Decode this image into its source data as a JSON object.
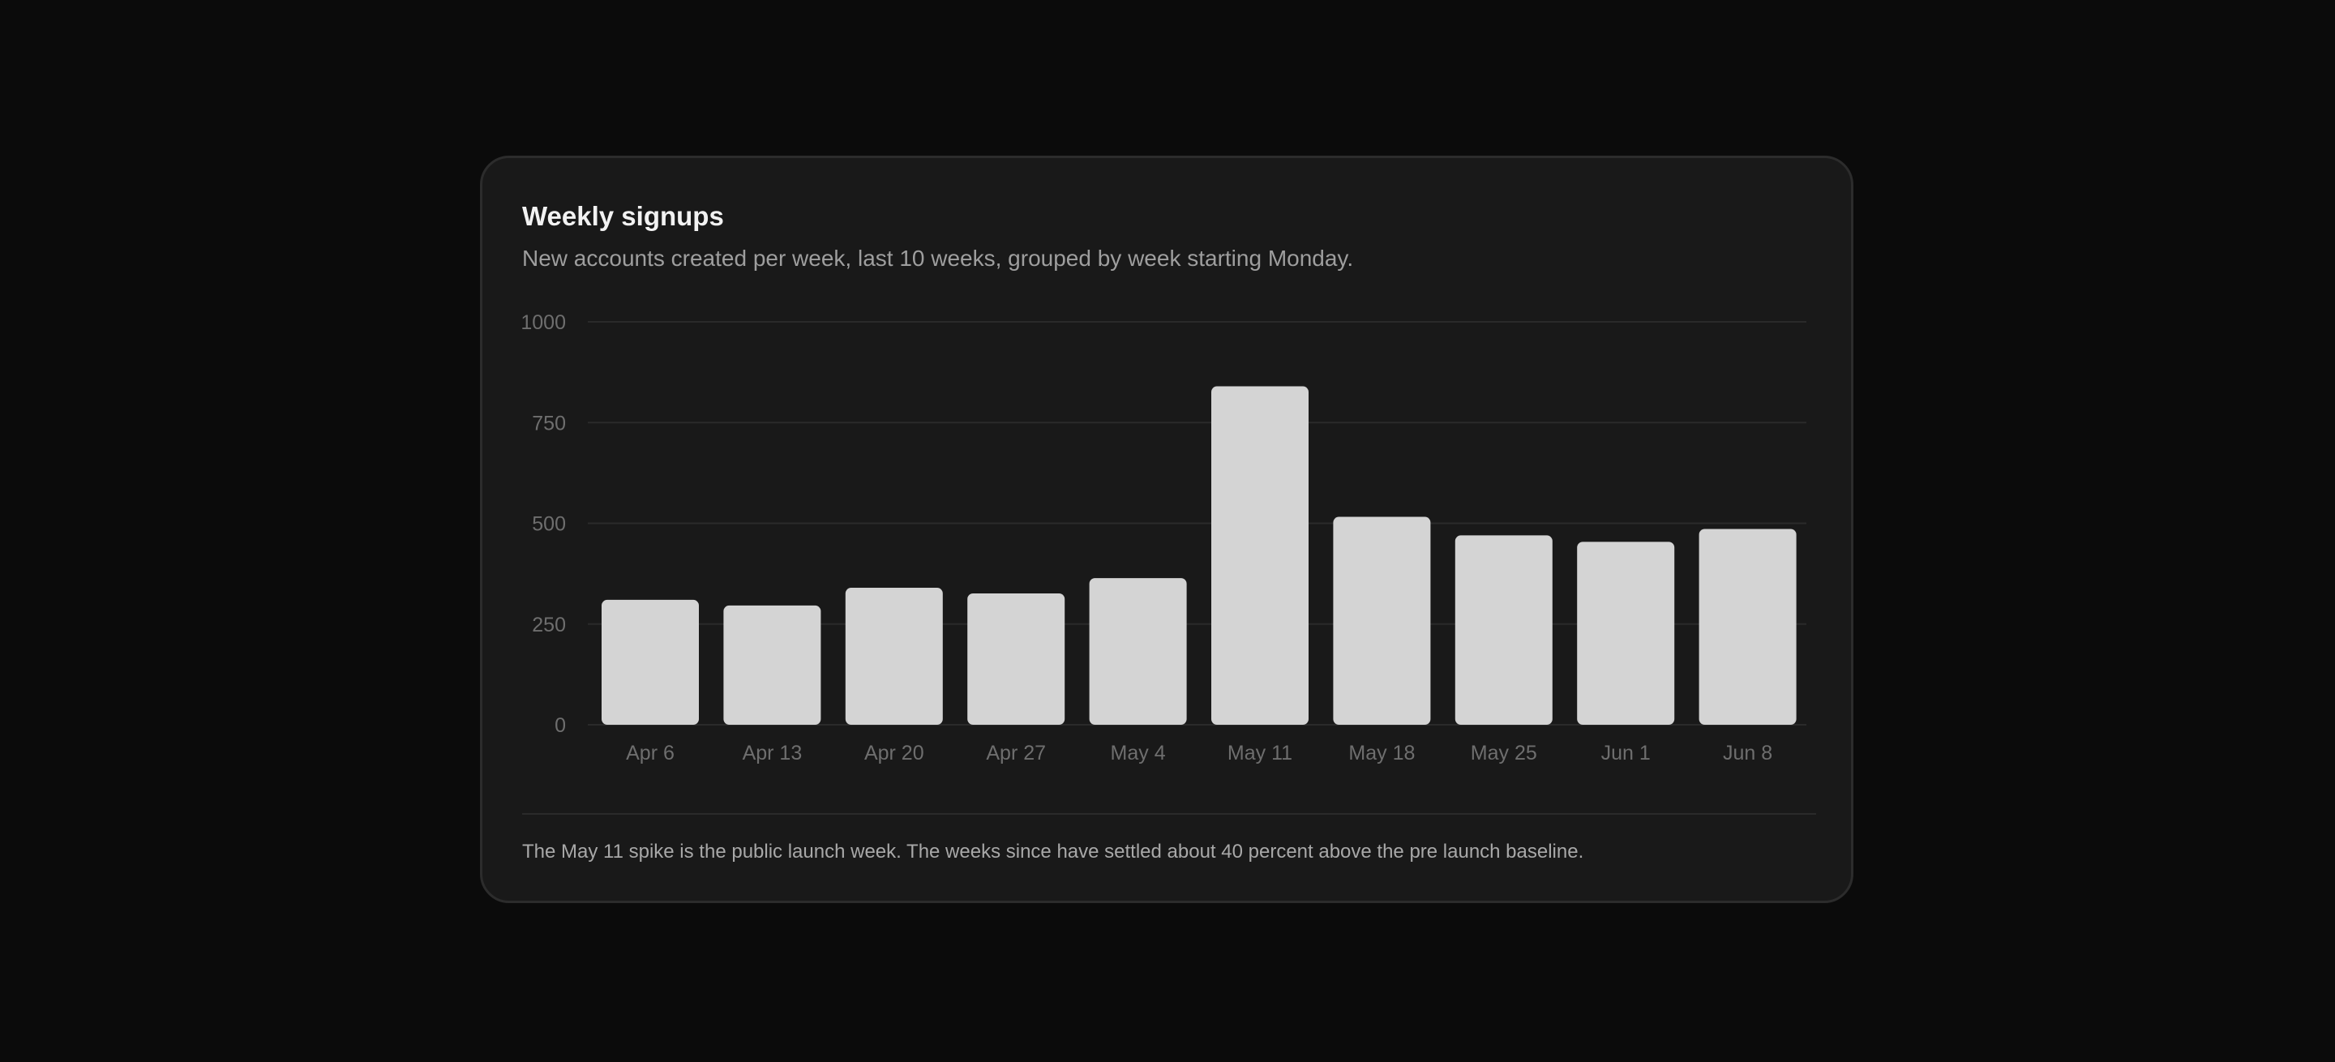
{
  "card": {
    "title": "Weekly signups",
    "subtitle": "New accounts created per week, last 10 weeks, grouped by week starting Monday.",
    "footnote": "The May 11 spike is the public launch week. The weeks since have settled about 40 percent above the pre launch baseline."
  },
  "chart_data": {
    "type": "bar",
    "title": "Weekly signups",
    "subtitle": "New accounts created per week, last 10 weeks, grouped by week starting Monday.",
    "xlabel": "",
    "ylabel": "",
    "categories": [
      "Apr 6",
      "Apr 13",
      "Apr 20",
      "Apr 27",
      "May 4",
      "May 11",
      "May 18",
      "May 25",
      "Jun 1",
      "Jun 8"
    ],
    "values": [
      310,
      296,
      340,
      326,
      364,
      840,
      516,
      470,
      454,
      486
    ],
    "ylim": [
      0,
      1000
    ],
    "yticks": [
      0,
      250,
      500,
      750,
      1000
    ],
    "grid": true,
    "legend": "none",
    "colors": {
      "bar": "#d4d4d4",
      "grid": "#2a2a2a",
      "tick_label": "#6e6e6e"
    }
  }
}
